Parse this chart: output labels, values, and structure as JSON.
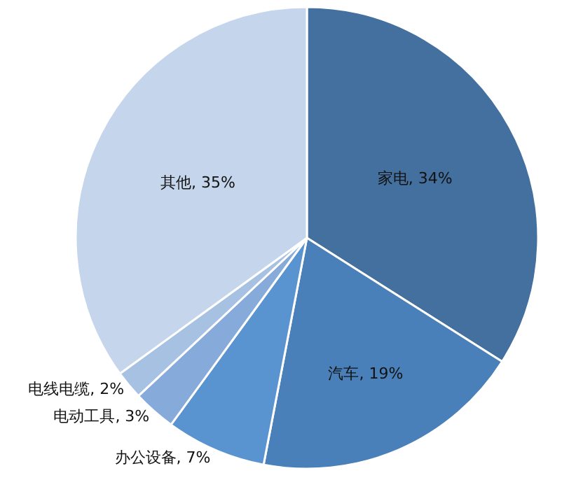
{
  "chart_data": {
    "type": "pie",
    "categories": [
      "家电",
      "汽车",
      "办公设备",
      "电动工具",
      "电线电缆",
      "其他"
    ],
    "values": [
      34,
      19,
      7,
      3,
      2,
      35
    ],
    "value_labels": [
      "34%",
      "19%",
      "7%",
      "3%",
      "2%",
      "35%"
    ],
    "colors": [
      "#43709f",
      "#4a80b9",
      "#5a94d0",
      "#86abdb",
      "#a7c1e3",
      "#c5d5eb"
    ],
    "legend": false
  }
}
